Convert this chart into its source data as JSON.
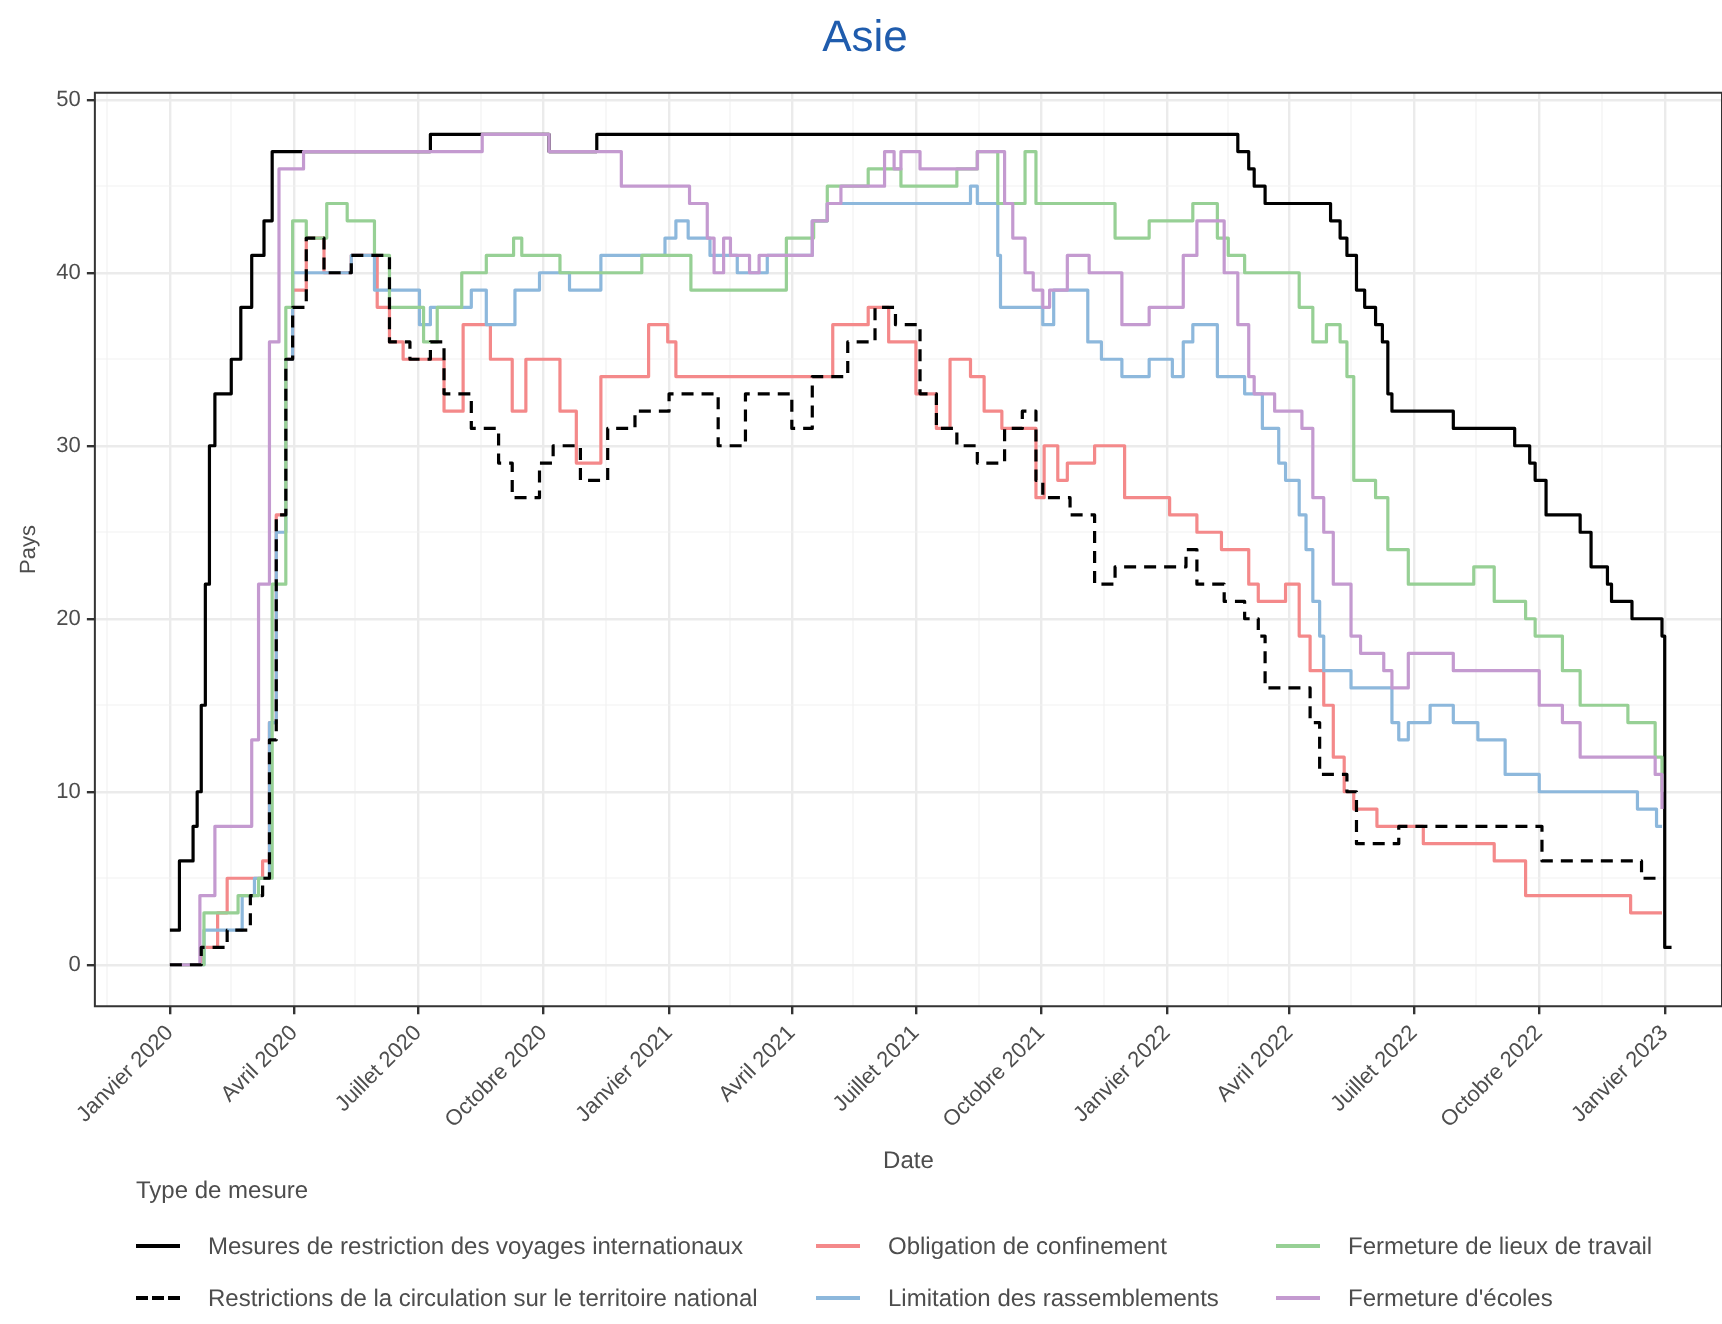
{
  "chart_data": {
    "type": "step",
    "title": "Asie",
    "xlabel": "Date",
    "ylabel": "Pays",
    "legend_title": "Type de mesure",
    "legend": "bottom",
    "grid": true,
    "xlim": [
      "2019-11-07",
      "2023-02-12"
    ],
    "ylim": [
      -2.4,
      50.4
    ],
    "xticks": [
      {
        "value": "2019-11-16",
        "label": null
      },
      {
        "value": "2020-01-01",
        "label": "Janvier 2020"
      },
      {
        "value": "2020-02-15",
        "label": null
      },
      {
        "value": "2020-04-01",
        "label": "Avril 2020"
      },
      {
        "value": "2020-05-16",
        "label": null
      },
      {
        "value": "2020-07-01",
        "label": "Juillet 2020"
      },
      {
        "value": "2020-08-16",
        "label": null
      },
      {
        "value": "2020-10-01",
        "label": "Octobre 2020"
      },
      {
        "value": "2020-11-16",
        "label": null
      },
      {
        "value": "2021-01-01",
        "label": "Janvier 2021"
      },
      {
        "value": "2021-02-15",
        "label": null
      },
      {
        "value": "2021-04-01",
        "label": "Avril 2021"
      },
      {
        "value": "2021-05-16",
        "label": null
      },
      {
        "value": "2021-07-01",
        "label": "Juillet 2021"
      },
      {
        "value": "2021-08-16",
        "label": null
      },
      {
        "value": "2021-10-01",
        "label": "Octobre 2021"
      },
      {
        "value": "2021-11-16",
        "label": null
      },
      {
        "value": "2022-01-01",
        "label": "Janvier 2022"
      },
      {
        "value": "2022-02-15",
        "label": null
      },
      {
        "value": "2022-04-01",
        "label": "Avril 2022"
      },
      {
        "value": "2022-05-16",
        "label": null
      },
      {
        "value": "2022-07-01",
        "label": "Juillet 2022"
      },
      {
        "value": "2022-08-16",
        "label": null
      },
      {
        "value": "2022-10-01",
        "label": "Octobre 2022"
      },
      {
        "value": "2022-11-16",
        "label": null
      },
      {
        "value": "2023-01-01",
        "label": "Janvier 2023"
      }
    ],
    "yticks": [
      0,
      {
        "value": 5,
        "label": null
      },
      10,
      {
        "value": 15,
        "label": null
      },
      20,
      {
        "value": 25,
        "label": null
      },
      30,
      {
        "value": 35,
        "label": null
      },
      40,
      {
        "value": 45,
        "label": null
      },
      50
    ],
    "series": [
      {
        "name": "Mesures de restriction des voyages internationaux",
        "color": "#000000",
        "line_style": "solid",
        "x": [
          "2020-01-01",
          "2020-01-08",
          "2020-01-18",
          "2020-01-21",
          "2020-01-24",
          "2020-01-27",
          "2020-01-30",
          "2020-02-03",
          "2020-02-15",
          "2020-02-22",
          "2020-03-01",
          "2020-03-10",
          "2020-03-16",
          "2020-07-10",
          "2020-10-05",
          "2020-11-09",
          "2022-02-22",
          "2022-03-02",
          "2022-03-06",
          "2022-03-14",
          "2022-05-01",
          "2022-05-08",
          "2022-05-13",
          "2022-05-20",
          "2022-05-26",
          "2022-06-03",
          "2022-06-08",
          "2022-06-12",
          "2022-06-15",
          "2022-07-30",
          "2022-09-13",
          "2022-09-24",
          "2022-09-28",
          "2022-10-06",
          "2022-10-31",
          "2022-11-08",
          "2022-11-20",
          "2022-11-23",
          "2022-12-08",
          "2022-12-30",
          "2023-01-01",
          "2023-01-06"
        ],
        "values": [
          2,
          6,
          8,
          10,
          15,
          22,
          30,
          33,
          35,
          38,
          41,
          43,
          47,
          48,
          47,
          48,
          47,
          46,
          45,
          44,
          43,
          42,
          41,
          39,
          38,
          37,
          36,
          33,
          32,
          31,
          30,
          29,
          28,
          26,
          25,
          23,
          22,
          21,
          20,
          19,
          1,
          1
        ]
      },
      {
        "name": "Restrictions de la circulation sur le territoire national",
        "color": "#000000",
        "line_style": "dashed",
        "x": [
          "2020-01-01",
          "2020-01-24",
          "2020-02-12",
          "2020-02-29",
          "2020-03-09",
          "2020-03-14",
          "2020-03-19",
          "2020-03-26",
          "2020-03-31",
          "2020-04-10",
          "2020-04-23",
          "2020-05-13",
          "2020-06-10",
          "2020-06-25",
          "2020-07-10",
          "2020-07-20",
          "2020-08-09",
          "2020-08-29",
          "2020-09-08",
          "2020-09-28",
          "2020-10-08",
          "2020-10-28",
          "2020-11-17",
          "2020-12-07",
          "2021-01-01",
          "2021-02-06",
          "2021-02-26",
          "2021-04-01",
          "2021-04-16",
          "2021-05-12",
          "2021-06-01",
          "2021-06-16",
          "2021-07-04",
          "2021-07-16",
          "2021-07-31",
          "2021-08-15",
          "2021-09-04",
          "2021-09-17",
          "2021-09-27",
          "2021-10-02",
          "2021-10-22",
          "2021-11-09",
          "2021-11-24",
          "2022-01-15",
          "2022-01-23",
          "2022-02-12",
          "2022-02-27",
          "2022-03-09",
          "2022-03-14",
          "2022-04-16",
          "2022-04-23",
          "2022-05-13",
          "2022-05-20",
          "2022-06-20",
          "2022-10-03",
          "2022-12-15",
          "2023-01-01"
        ],
        "values": [
          0,
          1,
          2,
          4,
          5,
          13,
          26,
          35,
          38,
          42,
          40,
          41,
          36,
          35,
          36,
          33,
          31,
          29,
          27,
          29,
          30,
          28,
          31,
          32,
          33,
          30,
          33,
          31,
          34,
          36,
          38,
          37,
          33,
          31,
          30,
          29,
          31,
          32,
          28,
          27,
          26,
          22,
          23,
          24,
          22,
          21,
          20,
          19,
          16,
          14,
          11,
          10,
          7,
          8,
          6,
          5,
          5
        ]
      },
      {
        "name": "Obligation de confinement",
        "color": "#f4898a",
        "line_style": "solid",
        "x": [
          "2020-01-01",
          "2020-01-24",
          "2020-02-05",
          "2020-02-12",
          "2020-03-09",
          "2020-03-14",
          "2020-03-19",
          "2020-03-26",
          "2020-03-31",
          "2020-04-10",
          "2020-04-23",
          "2020-05-13",
          "2020-06-01",
          "2020-06-10",
          "2020-06-20",
          "2020-07-20",
          "2020-08-03",
          "2020-08-23",
          "2020-09-08",
          "2020-09-18",
          "2020-10-13",
          "2020-10-25",
          "2020-11-12",
          "2020-12-17",
          "2020-12-31",
          "2021-01-06",
          "2021-03-28",
          "2021-05-01",
          "2021-05-27",
          "2021-06-11",
          "2021-07-01",
          "2021-07-16",
          "2021-07-26",
          "2021-08-10",
          "2021-08-20",
          "2021-09-02",
          "2021-09-27",
          "2021-10-03",
          "2021-10-13",
          "2021-10-20",
          "2021-11-09",
          "2021-12-01",
          "2022-01-03",
          "2022-01-23",
          "2022-02-10",
          "2022-03-02",
          "2022-03-09",
          "2022-03-29",
          "2022-04-08",
          "2022-04-16",
          "2022-04-26",
          "2022-05-03",
          "2022-05-11",
          "2022-05-18",
          "2022-06-04",
          "2022-07-08",
          "2022-08-29",
          "2022-09-21",
          "2022-12-07",
          "2022-12-30"
        ],
        "values": [
          0,
          1,
          3,
          5,
          6,
          14,
          26,
          35,
          39,
          42,
          40,
          41,
          38,
          36,
          35,
          32,
          37,
          35,
          32,
          35,
          32,
          29,
          34,
          37,
          36,
          34,
          34,
          37,
          38,
          36,
          33,
          31,
          35,
          34,
          32,
          31,
          27,
          30,
          28,
          29,
          30,
          27,
          26,
          25,
          24,
          22,
          21,
          22,
          19,
          17,
          15,
          12,
          10,
          9,
          8,
          7,
          6,
          4,
          3,
          3
        ]
      },
      {
        "name": "Limitation des rassemblements",
        "color": "#8db8dc",
        "line_style": "solid",
        "x": [
          "2020-01-01",
          "2020-01-26",
          "2020-02-23",
          "2020-03-03",
          "2020-03-14",
          "2020-03-19",
          "2020-03-26",
          "2020-03-31",
          "2020-05-13",
          "2020-05-30",
          "2020-07-02",
          "2020-07-10",
          "2020-08-09",
          "2020-08-20",
          "2020-09-10",
          "2020-09-28",
          "2020-10-20",
          "2020-11-12",
          "2020-12-29",
          "2021-01-06",
          "2021-01-15",
          "2021-01-31",
          "2021-02-20",
          "2021-03-14",
          "2021-04-16",
          "2021-04-27",
          "2021-08-10",
          "2021-08-15",
          "2021-08-30",
          "2021-09-01",
          "2021-10-02",
          "2021-10-10",
          "2021-11-04",
          "2021-11-14",
          "2021-11-29",
          "2021-12-19",
          "2022-01-05",
          "2022-01-13",
          "2022-01-20",
          "2022-02-07",
          "2022-02-27",
          "2022-03-12",
          "2022-03-24",
          "2022-03-29",
          "2022-04-08",
          "2022-04-13",
          "2022-04-18",
          "2022-04-23",
          "2022-04-26",
          "2022-05-16",
          "2022-06-15",
          "2022-06-20",
          "2022-06-27",
          "2022-07-13",
          "2022-07-30",
          "2022-08-17",
          "2022-09-06",
          "2022-10-01",
          "2022-12-12",
          "2022-12-26",
          "2022-12-30"
        ],
        "values": [
          0,
          2,
          4,
          5,
          14,
          25,
          35,
          40,
          41,
          39,
          37,
          38,
          39,
          37,
          39,
          40,
          39,
          41,
          42,
          43,
          42,
          41,
          40,
          41,
          43,
          44,
          45,
          44,
          41,
          38,
          37,
          39,
          36,
          35,
          34,
          35,
          34,
          36,
          37,
          34,
          33,
          31,
          29,
          28,
          26,
          24,
          21,
          19,
          17,
          16,
          14,
          13,
          14,
          15,
          14,
          13,
          11,
          10,
          9,
          8,
          8
        ]
      },
      {
        "name": "Fermeture de lieux de travail",
        "color": "#97d095",
        "line_style": "solid",
        "x": [
          "2020-01-01",
          "2020-01-26",
          "2020-02-20",
          "2020-03-06",
          "2020-03-16",
          "2020-03-26",
          "2020-03-31",
          "2020-04-10",
          "2020-04-25",
          "2020-05-10",
          "2020-05-30",
          "2020-06-10",
          "2020-07-05",
          "2020-07-15",
          "2020-08-02",
          "2020-08-20",
          "2020-09-09",
          "2020-09-15",
          "2020-10-13",
          "2020-12-12",
          "2021-01-17",
          "2021-03-28",
          "2021-04-17",
          "2021-04-27",
          "2021-05-27",
          "2021-06-20",
          "2021-07-31",
          "2021-08-15",
          "2021-08-30",
          "2021-09-19",
          "2021-09-27",
          "2021-11-24",
          "2021-12-19",
          "2022-01-20",
          "2022-02-07",
          "2022-02-15",
          "2022-02-27",
          "2022-04-08",
          "2022-04-18",
          "2022-04-28",
          "2022-05-08",
          "2022-05-13",
          "2022-05-18",
          "2022-06-03",
          "2022-06-12",
          "2022-06-27",
          "2022-08-14",
          "2022-08-29",
          "2022-09-21",
          "2022-09-28",
          "2022-10-18",
          "2022-10-31",
          "2022-12-05",
          "2022-12-25",
          "2022-12-30"
        ],
        "values": [
          0,
          3,
          4,
          5,
          22,
          38,
          43,
          42,
          44,
          43,
          41,
          38,
          36,
          38,
          40,
          41,
          42,
          41,
          40,
          41,
          39,
          42,
          43,
          45,
          46,
          45,
          46,
          47,
          44,
          47,
          44,
          42,
          43,
          44,
          42,
          41,
          40,
          38,
          36,
          37,
          36,
          34,
          28,
          27,
          24,
          22,
          23,
          21,
          20,
          19,
          17,
          15,
          14,
          12,
          10
        ]
      },
      {
        "name": "Fermeture d'écoles",
        "color": "#c49ad0",
        "line_style": "solid",
        "x": [
          "2020-01-01",
          "2020-01-23",
          "2020-02-03",
          "2020-03-01",
          "2020-03-06",
          "2020-03-14",
          "2020-03-21",
          "2020-04-08",
          "2020-08-17",
          "2020-10-05",
          "2020-11-27",
          "2021-01-16",
          "2021-01-29",
          "2021-02-03",
          "2021-02-10",
          "2021-02-15",
          "2021-03-01",
          "2021-03-08",
          "2021-04-16",
          "2021-04-27",
          "2021-05-07",
          "2021-06-08",
          "2021-06-15",
          "2021-06-20",
          "2021-07-04",
          "2021-08-15",
          "2021-09-04",
          "2021-09-10",
          "2021-09-19",
          "2021-09-25",
          "2021-10-02",
          "2021-10-07",
          "2021-10-20",
          "2021-11-05",
          "2021-11-29",
          "2021-12-19",
          "2022-01-13",
          "2022-01-23",
          "2022-02-12",
          "2022-02-22",
          "2022-03-02",
          "2022-03-06",
          "2022-03-21",
          "2022-04-10",
          "2022-04-18",
          "2022-04-26",
          "2022-05-03",
          "2022-05-16",
          "2022-05-23",
          "2022-06-09",
          "2022-06-15",
          "2022-06-27",
          "2022-07-30",
          "2022-10-01",
          "2022-10-18",
          "2022-10-31",
          "2022-12-25",
          "2022-12-30"
        ],
        "values": [
          0,
          4,
          8,
          13,
          22,
          36,
          46,
          47,
          48,
          47,
          45,
          44,
          42,
          40,
          42,
          41,
          40,
          41,
          43,
          44,
          45,
          47,
          46,
          47,
          46,
          47,
          44,
          42,
          40,
          39,
          38,
          39,
          41,
          40,
          37,
          38,
          41,
          43,
          40,
          37,
          34,
          33,
          32,
          31,
          27,
          25,
          22,
          19,
          18,
          17,
          16,
          18,
          17,
          15,
          14,
          12,
          11,
          9
        ]
      }
    ]
  }
}
